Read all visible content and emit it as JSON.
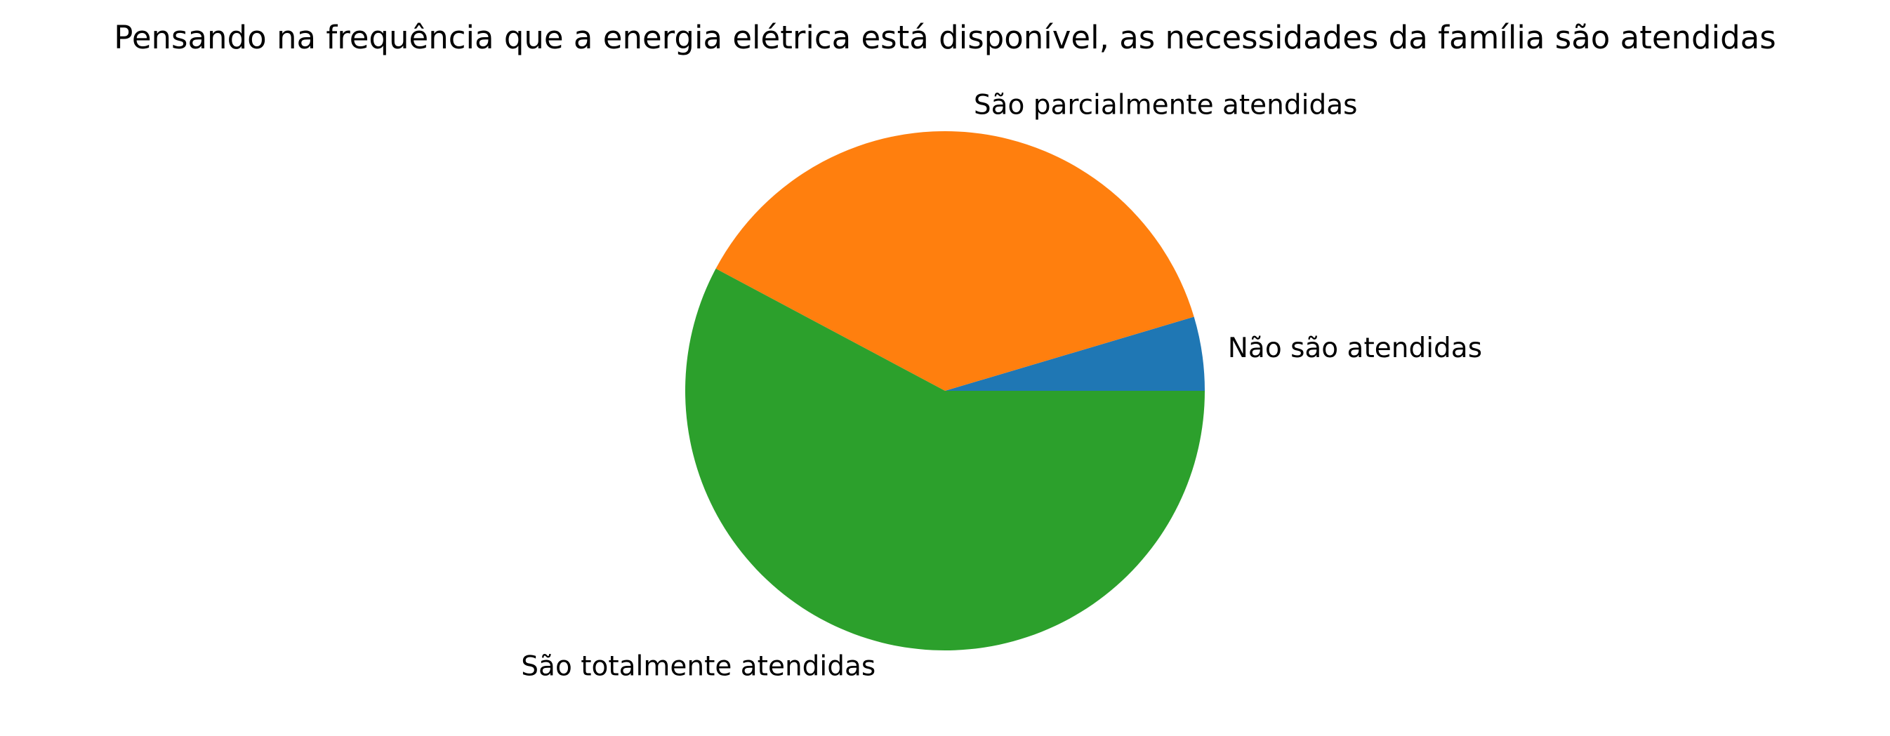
{
  "chart_data": {
    "type": "pie",
    "title": "Pensando na frequência que a energia elétrica está disponível, as necessidades da família são atendidas",
    "start_angle_deg": 0,
    "direction": "counterclockwise",
    "slices": [
      {
        "label": "Não são atendidas",
        "value": 4.6,
        "color": "#1f77b4"
      },
      {
        "label": "São parcialmente atendidas",
        "value": 37.6,
        "color": "#ff7f0e"
      },
      {
        "label": "São totalmente atendidas",
        "value": 57.8,
        "color": "#2ca02c"
      }
    ],
    "legend": "none",
    "grid": false
  }
}
